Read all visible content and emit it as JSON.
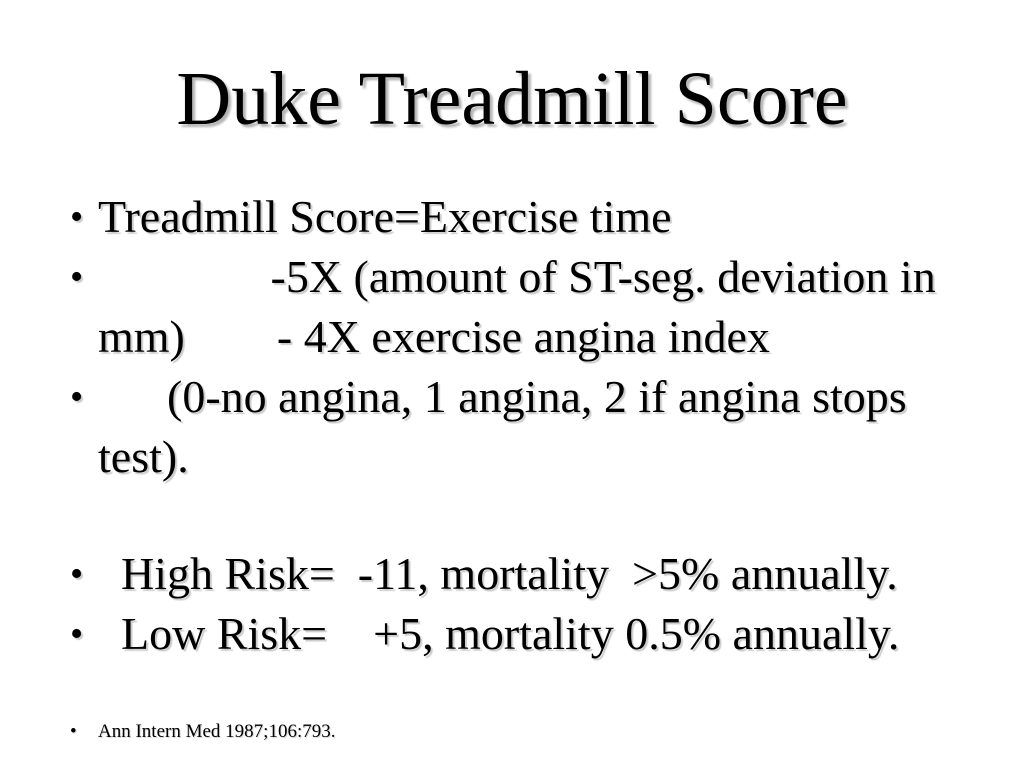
{
  "slide": {
    "title": "Duke Treadmill Score",
    "bullet_char": "•",
    "colors": {
      "background": "#ffffff",
      "text": "#000000",
      "title_shadow": "#b4b4b4"
    },
    "body_group1": [
      {
        "lines": [
          "Treadmill Score=Exercise time"
        ]
      },
      {
        "lines": [
          "               -5X (amount of ST-seg. deviation in",
          "mm)        - 4X exercise angina index"
        ]
      },
      {
        "lines": [
          "      (0-no angina, 1 angina, 2 if angina stops",
          "test)."
        ]
      }
    ],
    "body_group2": [
      {
        "lines": [
          "  High Risk=  -11, mortality  >5% annually."
        ]
      },
      {
        "lines": [
          "  Low Risk=    +5, mortality 0.5% annually."
        ]
      }
    ],
    "footnote": "Ann Intern Med 1987;106:793."
  }
}
